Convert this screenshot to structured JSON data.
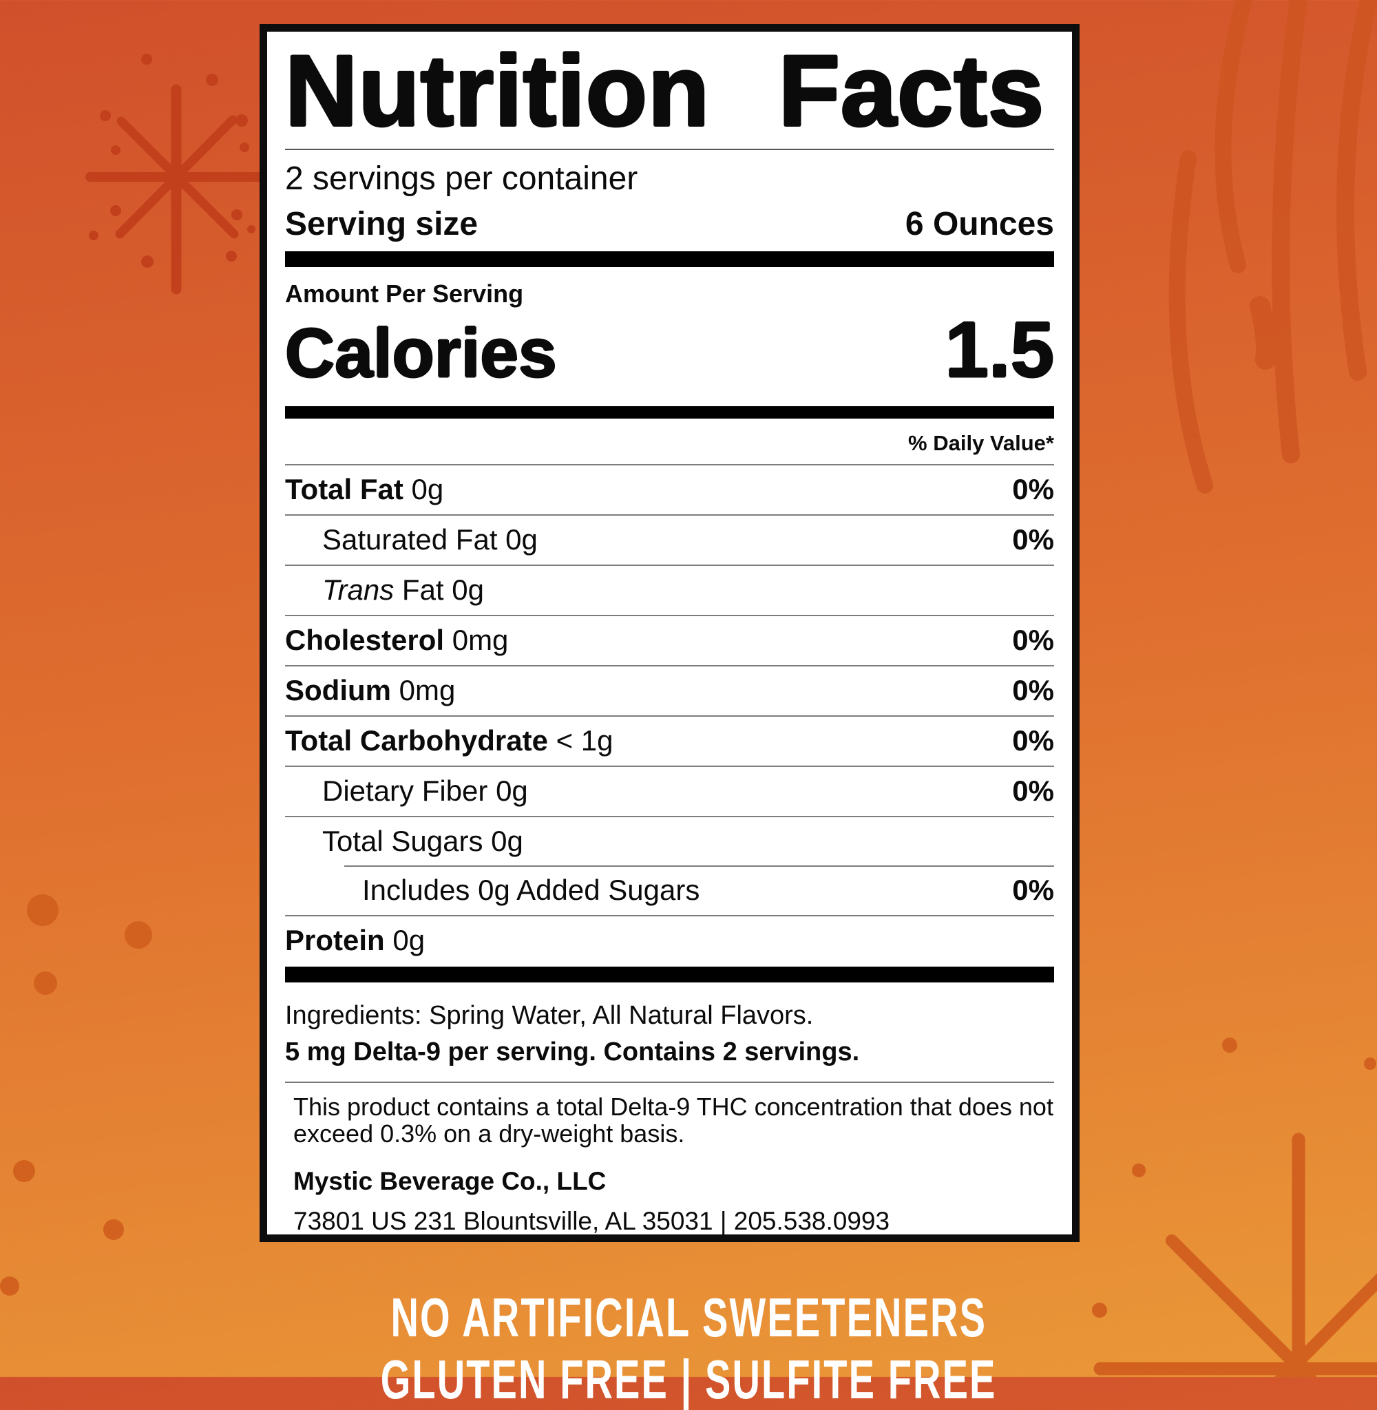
{
  "background": {
    "gradient_top": "#d0502b",
    "gradient_mid": "#df6e2f",
    "gradient_bottom": "#ea9838",
    "decoration_red": "#c2401c",
    "decoration_orange": "#d2611f",
    "decoration_swirl": "#ce5521"
  },
  "label": {
    "title": "Nutrition Facts",
    "servings_per_container": "2 servings per container",
    "serving_size_label": "Serving size",
    "serving_size_value": "6 Ounces",
    "amount_per_serving": "Amount Per Serving",
    "calories_label": "Calories",
    "calories_value": "1.5",
    "daily_value_header": "% Daily Value*",
    "rows": [
      {
        "name": "Total Fat",
        "amount": "0g",
        "dv": "0%",
        "name_bold": true,
        "indent": 0
      },
      {
        "name": "Saturated Fat",
        "amount": "0g",
        "dv": "0%",
        "indent": 1
      },
      {
        "name": "Trans",
        "amount": "Fat 0g",
        "dv": "",
        "name_italic": true,
        "indent": 1
      },
      {
        "name": "Cholesterol",
        "amount": "0mg",
        "dv": "0%",
        "name_bold": true,
        "indent": 0
      },
      {
        "name": "Sodium",
        "amount": "0mg",
        "dv": "0%",
        "name_bold": true,
        "indent": 0
      },
      {
        "name": "Total Carbohydrate",
        "amount": "< 1g",
        "dv": "0%",
        "name_bold": true,
        "indent": 0
      },
      {
        "name": "Dietary Fiber",
        "amount": "0g",
        "dv": "0%",
        "indent": 1
      },
      {
        "name": "Total Sugars",
        "amount": "0g",
        "dv": "",
        "indent": 1
      },
      {
        "name": "Includes 0g Added Sugars",
        "amount": "",
        "dv": "0%",
        "indent": 2,
        "partial_rule": true
      },
      {
        "name": "Protein",
        "amount": "0g",
        "dv": "",
        "name_bold": true,
        "indent": 0
      }
    ],
    "ingredients": "Ingredients: Spring Water, All Natural Flavors.",
    "potency": "5 mg Delta-9 per serving. Contains 2 servings.",
    "disclaimer": "This product contains a total Delta-9 THC concentration that does not exceed 0.3% on a dry-weight basis.",
    "company_name": "Mystic Beverage Co., LLC",
    "company_address": "73801 US 231 Blountsville, AL 35031 |  205.538.0993"
  },
  "footer": {
    "claim1": "NO ARTIFICIAL SWEETENERS",
    "claim2": "GLUTEN FREE | SULFITE FREE"
  }
}
